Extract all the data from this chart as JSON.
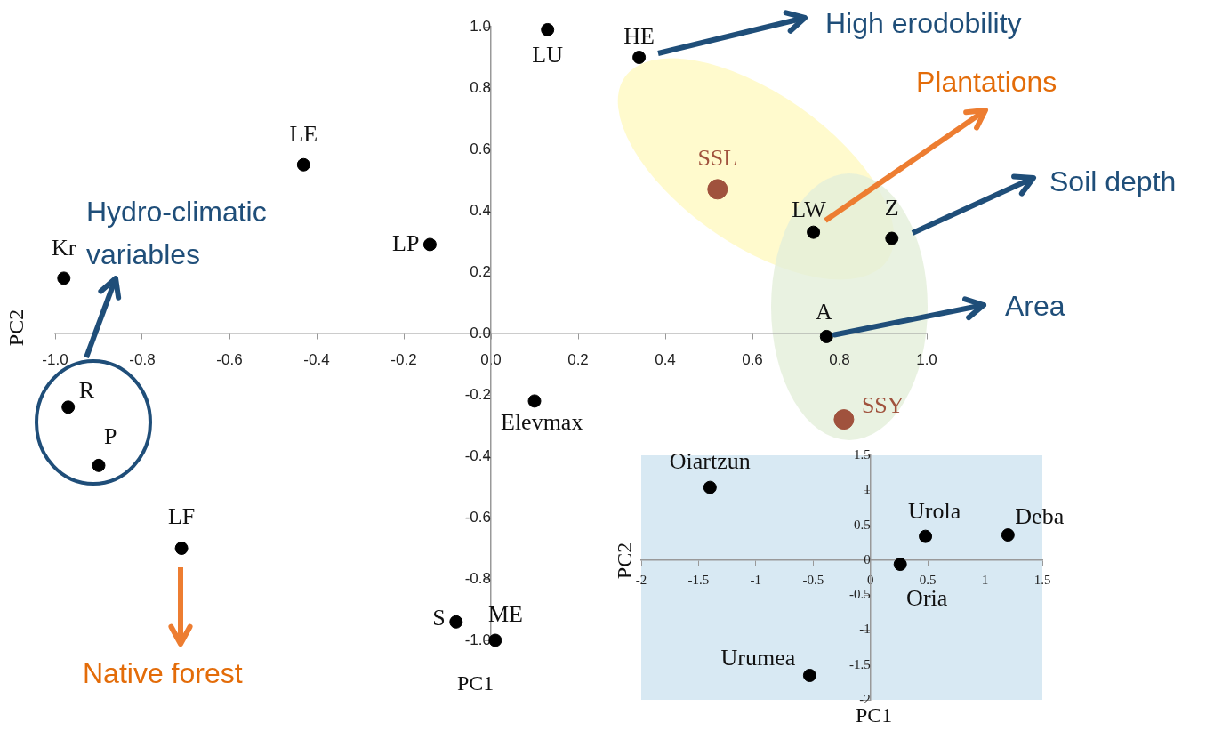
{
  "chart_data": [
    {
      "type": "scatter",
      "xlabel": "PC1",
      "ylabel": "PC2",
      "xlim": [
        -1.0,
        1.0
      ],
      "ylim": [
        -1.0,
        1.0
      ],
      "xticks": [
        {
          "value": -1.0,
          "label": "-1.0"
        },
        -0.8,
        -0.6,
        -0.4,
        -0.2,
        {
          "value": 0,
          "label": "0.0"
        },
        0.2,
        0.4,
        0.6,
        0.8,
        {
          "value": 1.0,
          "label": "1.0"
        }
      ],
      "yticks": [
        {
          "value": -1.0,
          "label": "-1.0"
        },
        -0.8,
        -0.6,
        -0.4,
        -0.2,
        {
          "value": 0,
          "label": "0.0"
        },
        0.2,
        0.4,
        0.6,
        0.8,
        {
          "value": 1.0,
          "label": "1.0"
        }
      ],
      "grid": false,
      "legend": false,
      "marker": "circle",
      "series": [
        {
          "name": "LU",
          "color": "#000000",
          "x": [
            0.13
          ],
          "values": [
            0.99
          ]
        },
        {
          "name": "HE",
          "color": "#000000",
          "x": [
            0.34
          ],
          "values": [
            0.9
          ]
        },
        {
          "name": "LE",
          "color": "#000000",
          "x": [
            -0.43
          ],
          "values": [
            0.55
          ]
        },
        {
          "name": "SSL",
          "color": "#a0523d",
          "x": [
            0.52
          ],
          "values": [
            0.47
          ]
        },
        {
          "name": "LW",
          "color": "#000000",
          "x": [
            0.74
          ],
          "values": [
            0.33
          ]
        },
        {
          "name": "Z",
          "color": "#000000",
          "x": [
            0.92
          ],
          "values": [
            0.31
          ]
        },
        {
          "name": "LP",
          "color": "#000000",
          "x": [
            -0.14
          ],
          "values": [
            0.29
          ]
        },
        {
          "name": "Kr",
          "color": "#000000",
          "x": [
            -0.98
          ],
          "values": [
            0.18
          ]
        },
        {
          "name": "A",
          "color": "#000000",
          "x": [
            0.77
          ],
          "values": [
            -0.01
          ]
        },
        {
          "name": "Elevmax",
          "color": "#000000",
          "x": [
            0.1
          ],
          "values": [
            -0.22
          ]
        },
        {
          "name": "R",
          "color": "#000000",
          "x": [
            -0.97
          ],
          "values": [
            -0.24
          ]
        },
        {
          "name": "SSY",
          "color": "#a0523d",
          "x": [
            0.81
          ],
          "values": [
            -0.28
          ]
        },
        {
          "name": "P",
          "color": "#000000",
          "x": [
            -0.9
          ],
          "values": [
            -0.43
          ]
        },
        {
          "name": "LF",
          "color": "#000000",
          "x": [
            -0.71
          ],
          "values": [
            -0.7
          ]
        },
        {
          "name": "S",
          "color": "#000000",
          "x": [
            -0.08
          ],
          "values": [
            -0.94
          ]
        },
        {
          "name": "ME",
          "color": "#000000",
          "x": [
            0.01
          ],
          "values": [
            -1.0
          ]
        }
      ],
      "annotations": [
        "High erodobility",
        "Plantations",
        "Soil depth",
        {
          "text": "Area",
          "x": 0.77,
          "y": -0.01
        },
        "Hydro-climatic variables",
        "Native forest"
      ]
    },
    {
      "type": "scatter",
      "xlabel": "PC1",
      "ylabel": "PC2",
      "xlim": [
        -2,
        1.5
      ],
      "ylim": [
        -2,
        1.5
      ],
      "xticks": [
        -2,
        -1.5,
        -1,
        -0.5,
        0,
        0.5,
        1,
        1.5
      ],
      "yticks": [
        -2,
        -1.5,
        -1,
        -0.5,
        0,
        0.5,
        1,
        1.5
      ],
      "grid": false,
      "legend": false,
      "marker": "circle",
      "series": [
        {
          "name": "Oiartzun",
          "color": "#000000",
          "x": [
            -1.4
          ],
          "values": [
            1.04
          ]
        },
        {
          "name": "Urola",
          "color": "#000000",
          "x": [
            0.48
          ],
          "values": [
            0.34
          ]
        },
        {
          "name": "Deba",
          "color": "#000000",
          "x": [
            1.2
          ],
          "values": [
            0.36
          ]
        },
        {
          "name": "Oria",
          "color": "#000000",
          "x": [
            0.26
          ],
          "values": [
            -0.06
          ]
        },
        {
          "name": "Urumea",
          "color": "#000000",
          "x": [
            -0.53
          ],
          "values": [
            -1.65
          ]
        }
      ]
    }
  ]
}
